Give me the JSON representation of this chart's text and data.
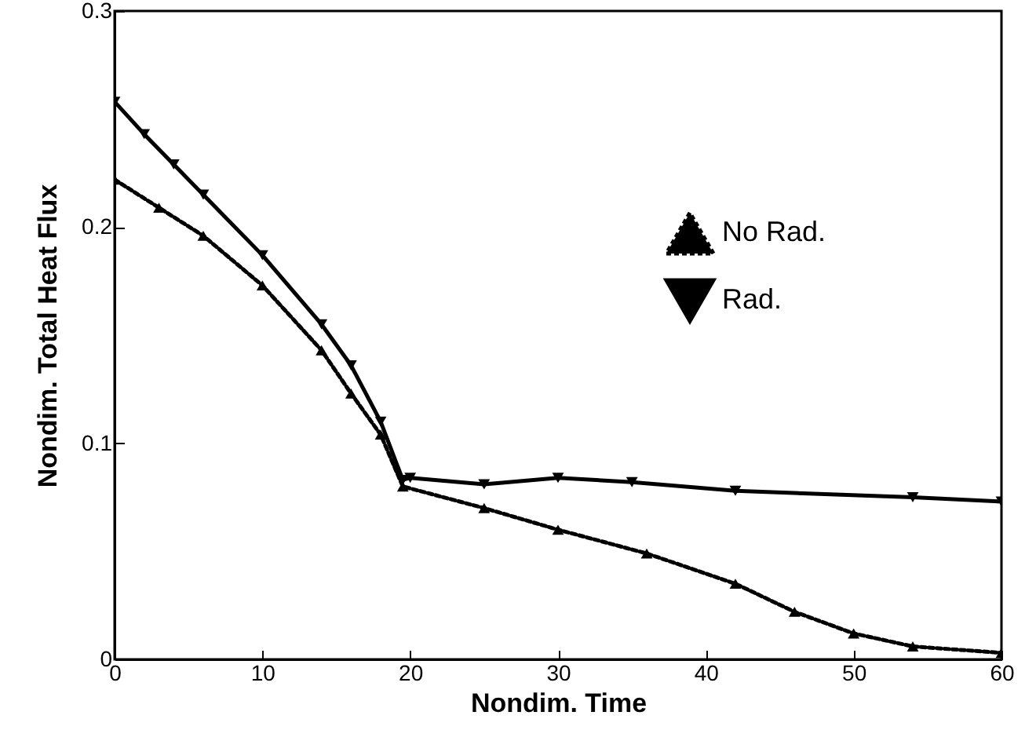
{
  "chart_data": {
    "type": "line",
    "xlabel": "Nondim.  Time",
    "ylabel": "Nondim.  Total Heat Flux",
    "xlim": [
      0,
      60
    ],
    "xticks": [
      0,
      10,
      20,
      30,
      40,
      50,
      60
    ],
    "ylim": [
      0,
      0.3
    ],
    "yticks": [
      {
        "value": 0,
        "label": "0"
      },
      {
        "value": 0.1,
        "label": "0.1"
      },
      {
        "value": 0.2,
        "label": "0.2"
      },
      {
        "value": 0.3,
        "label": "0.3"
      }
    ],
    "grid": false,
    "legend": "top right",
    "series": [
      {
        "name": "No Rad.",
        "color": "#000000",
        "marker": "triangle",
        "line_style": "dotted",
        "x": [
          0,
          3,
          6,
          10,
          14,
          16,
          18,
          19.5,
          25,
          30,
          36,
          42,
          46,
          50,
          54,
          60
        ],
        "values": [
          0.222,
          0.209,
          0.196,
          0.173,
          0.143,
          0.123,
          0.104,
          0.08,
          0.07,
          0.06,
          0.049,
          0.035,
          0.022,
          0.012,
          0.006,
          0.003
        ]
      },
      {
        "name": "Rad.",
        "color": "#000000",
        "marker": "triangle-down",
        "line_style": "solid",
        "x": [
          0,
          2,
          4,
          6,
          10,
          14,
          16,
          18,
          19.5,
          20,
          25,
          30,
          35,
          42,
          54,
          60
        ],
        "values": [
          0.258,
          0.243,
          0.229,
          0.215,
          0.187,
          0.155,
          0.136,
          0.11,
          0.083,
          0.084,
          0.081,
          0.084,
          0.082,
          0.078,
          0.075,
          0.073
        ]
      }
    ]
  }
}
